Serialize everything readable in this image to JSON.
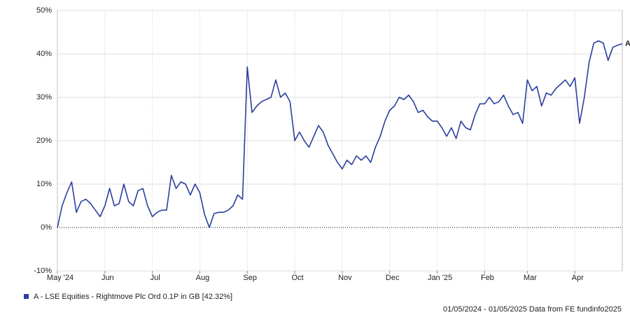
{
  "chart_data": {
    "type": "line",
    "categories": [
      "May '24",
      null,
      null,
      null,
      null,
      null,
      null,
      null,
      null,
      null,
      "Jun",
      null,
      null,
      null,
      null,
      null,
      null,
      null,
      null,
      null,
      "Jul",
      null,
      null,
      null,
      null,
      null,
      null,
      null,
      null,
      null,
      "Aug",
      null,
      null,
      null,
      null,
      null,
      null,
      null,
      null,
      null,
      "Sep",
      null,
      null,
      null,
      null,
      null,
      null,
      null,
      null,
      null,
      "Oct",
      null,
      null,
      null,
      null,
      null,
      null,
      null,
      null,
      null,
      "Nov",
      null,
      null,
      null,
      null,
      null,
      null,
      null,
      null,
      null,
      "Dec",
      null,
      null,
      null,
      null,
      null,
      null,
      null,
      null,
      null,
      "Jan '25",
      null,
      null,
      null,
      null,
      null,
      null,
      null,
      null,
      null,
      "Feb",
      null,
      null,
      null,
      null,
      null,
      null,
      null,
      null,
      "Mar",
      null,
      null,
      null,
      null,
      null,
      null,
      null,
      null,
      null,
      "Apr",
      null,
      null,
      null,
      null,
      null,
      null,
      null,
      null,
      null,
      null
    ],
    "series": [
      {
        "name": "A - LSE Equities - Rightmove Plc Ord 0.1P in GB [42.32%]",
        "color": "#2a3f9e",
        "values": [
          0,
          5,
          8,
          10.5,
          3.5,
          6,
          6.5,
          5.5,
          4,
          2.5,
          5,
          9,
          5,
          5.5,
          10,
          6,
          5,
          8.5,
          9,
          5,
          2.5,
          3.5,
          4,
          4,
          12,
          9,
          10.5,
          10,
          7.5,
          10,
          8,
          3,
          0,
          3.2,
          3.5,
          3.5,
          4,
          5,
          7.5,
          6.5,
          37,
          26.5,
          28,
          29,
          29.5,
          30,
          34,
          30,
          31,
          29,
          20,
          22,
          20,
          18.5,
          21,
          23.5,
          22,
          19,
          17,
          15,
          13.5,
          15.5,
          14.5,
          16.5,
          15.5,
          16.5,
          15,
          18.5,
          21,
          24.5,
          27,
          28,
          30,
          29.5,
          30.5,
          29,
          26.5,
          27,
          25.5,
          24.5,
          24.5,
          23,
          21,
          23,
          20.5,
          24.5,
          23,
          22.5,
          26,
          28.5,
          28.5,
          30,
          28.5,
          29,
          30.5,
          28,
          26,
          26.5,
          24,
          34,
          31.5,
          32.5,
          28,
          31,
          30.5,
          32,
          33,
          34,
          32.5,
          34.5,
          24,
          30,
          38,
          42.5,
          43,
          42.5,
          38.5,
          41.5,
          42,
          42.32
        ]
      }
    ],
    "end_label": "A",
    "ylim": [
      -10,
      50
    ],
    "yticks": [
      {
        "value": -10,
        "label": "-10%"
      },
      {
        "value": 0,
        "label": "0%"
      },
      {
        "value": 10,
        "label": "10%"
      },
      {
        "value": 20,
        "label": "20%"
      },
      {
        "value": 30,
        "label": "30%"
      },
      {
        "value": 40,
        "label": "40%"
      },
      {
        "value": 50,
        "label": "50%"
      }
    ],
    "grid": true,
    "footer": "01/05/2024 - 01/05/2025 Data from FE fundinfo2025"
  }
}
